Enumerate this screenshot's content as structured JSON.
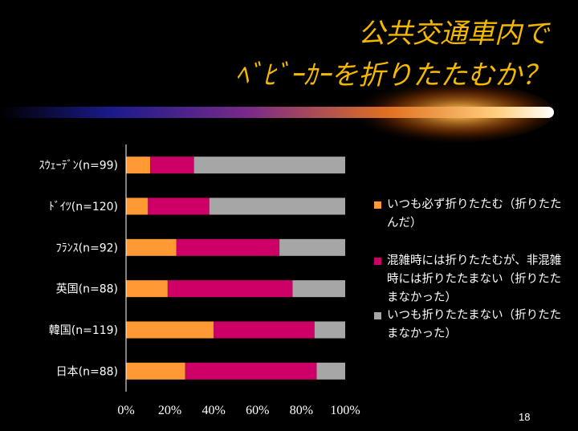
{
  "slide": {
    "title_line1": "公共交通車内で",
    "title_line2": "ﾍﾞﾋﾞｰｶｰを折りたたむか？",
    "page_number": "18"
  },
  "colors": {
    "background": "#000000",
    "title": "#F5B800",
    "series_fold_always": "#FF9933",
    "series_fold_when_crowded": "#CC0066",
    "series_never_fold": "#A6A6A6",
    "text": "#FFFFFF"
  },
  "chart_data": {
    "type": "bar",
    "orientation": "horizontal",
    "stacked": "percent",
    "categories": [
      "ｽｳｪｰﾃﾞﾝ(n=99)",
      "ﾄﾞｲﾂ(n=120)",
      "ﾌﾗﾝｽ(n=92)",
      "英国(n=88)",
      "韓国(n=119)",
      "日本(n=88)"
    ],
    "series": [
      {
        "name": "いつも必ず折りたたむ（折りたたんだ）",
        "color": "#FF9933",
        "values": [
          11,
          10,
          23,
          19,
          40,
          27
        ]
      },
      {
        "name": "混雑時には折りたたむが、非混雑時には折りたたまない（折りたたまなかった）",
        "color": "#CC0066",
        "values": [
          20,
          28,
          47,
          57,
          46,
          60
        ]
      },
      {
        "name": "いつも折りたたまない（折りたたまなかった）",
        "color": "#A6A6A6",
        "values": [
          69,
          62,
          30,
          24,
          14,
          13
        ]
      }
    ],
    "xlim": [
      0,
      100
    ],
    "x_ticks": [
      "0%",
      "20%",
      "40%",
      "60%",
      "80%",
      "100%"
    ],
    "legend_position": "right",
    "grid": false
  }
}
